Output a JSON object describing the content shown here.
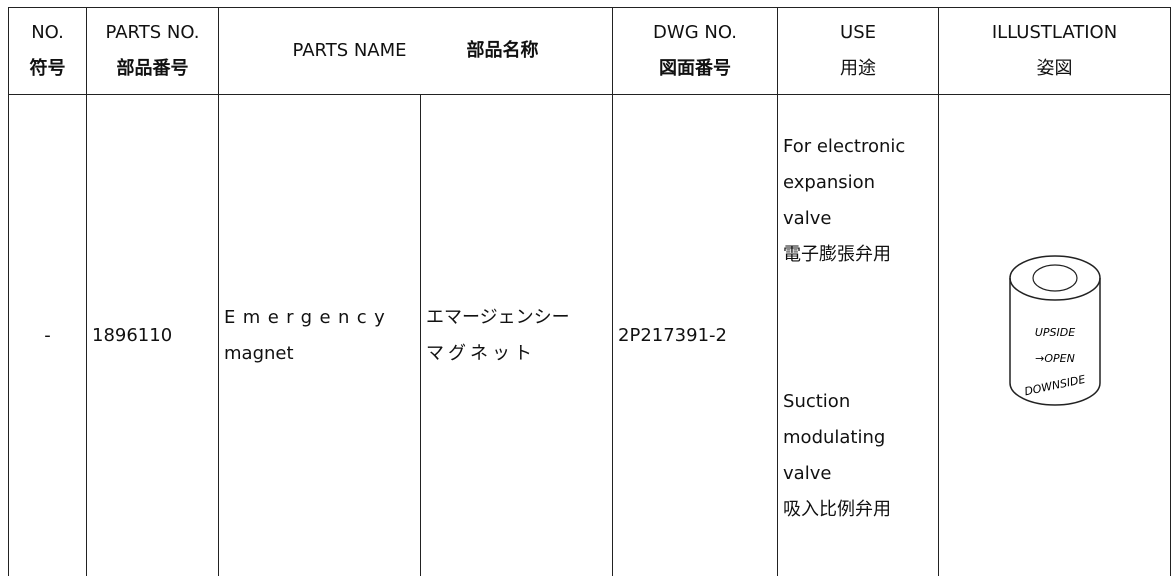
{
  "header": {
    "no": [
      "NO.",
      "符号"
    ],
    "parts_no": [
      "PARTS NO.",
      "部品番号"
    ],
    "parts_name": [
      "PARTS NAME",
      "部品名称"
    ],
    "dwg_no": [
      "DWG NO.",
      "図面番号"
    ],
    "use": [
      "USE",
      "用途"
    ],
    "illustration": [
      "ILLUSTLATION",
      "姿図"
    ]
  },
  "table": {
    "rows": [
      {
        "no": "-",
        "parts_no": "1896110",
        "name_en": [
          "Emergency",
          "magnet"
        ],
        "name_jp": [
          "エマージェンシー",
          "マグネット"
        ],
        "dwg_no": "2P217391-2",
        "use": [
          [
            "For electronic",
            "expansion",
            "valve",
            "電子膨張弁用"
          ],
          [
            "Suction",
            "modulating",
            "valve",
            "吸入比例弁用"
          ]
        ],
        "illustration": [
          "UPSIDE",
          "→OPEN",
          "DOWNSIDE"
        ]
      }
    ]
  }
}
